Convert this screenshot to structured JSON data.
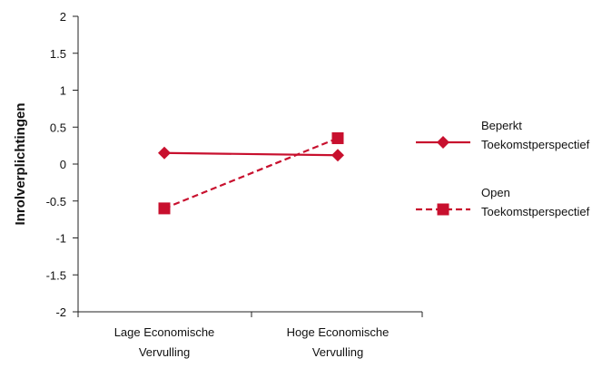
{
  "chart_data": {
    "type": "line",
    "title": "",
    "xlabel": "",
    "ylabel": "Inrolverplichtingen",
    "ylim": [
      -2,
      2
    ],
    "yticks": [
      "2",
      "1.5",
      "1",
      "0.5",
      "0",
      "-0.5",
      "-1",
      "-1.5",
      "-2"
    ],
    "ytick_values": [
      2,
      1.5,
      1,
      0.5,
      0,
      -0.5,
      -1,
      -1.5,
      -2
    ],
    "categories": [
      [
        "Lage Economische",
        "Vervulling"
      ],
      [
        "Hoge Economische",
        "Vervulling"
      ]
    ],
    "series": [
      {
        "name": [
          "Beperkt",
          "Toekomstperspectief"
        ],
        "values": [
          0.15,
          0.12
        ],
        "line_style": "solid",
        "marker": "diamond",
        "color": "#c8102e"
      },
      {
        "name": [
          "Open",
          "Toekomstperspectief"
        ],
        "values": [
          -0.6,
          0.35
        ],
        "line_style": "dashed",
        "marker": "square",
        "color": "#c8102e"
      }
    ],
    "grid": false,
    "legend_position": "right",
    "axis_color": "#222222"
  }
}
